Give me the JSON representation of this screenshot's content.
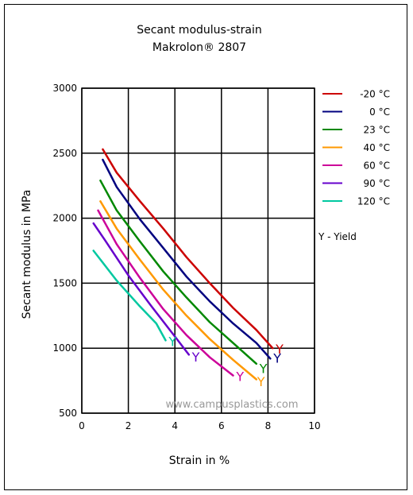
{
  "chart_data": {
    "type": "line",
    "title": "Secant modulus-strain",
    "subtitle": "Makrolon® 2807",
    "xlabel": "Strain in %",
    "ylabel": "Secant modulus in MPa",
    "xlim": [
      0,
      10
    ],
    "ylim": [
      500,
      3000
    ],
    "xticks": [
      "0",
      "2",
      "4",
      "6",
      "8",
      "10"
    ],
    "yticks": [
      "500",
      "1000",
      "1500",
      "2000",
      "2500",
      "3000"
    ],
    "grid": true,
    "legend_position": "right",
    "watermark": "www.campusplastics.com",
    "yield_note": "Y - Yield",
    "yield_marker": "Y",
    "series": [
      {
        "name": "-20 °C",
        "color": "#cc0000",
        "x": [
          0.9,
          1.5,
          2.5,
          3.5,
          4.5,
          5.5,
          6.5,
          7.5,
          8.2
        ],
        "y": [
          2530,
          2350,
          2130,
          1920,
          1700,
          1500,
          1310,
          1140,
          1000
        ],
        "yield": [
          8.5,
          1000
        ]
      },
      {
        "name": "0 °C",
        "color": "#00007f",
        "x": [
          0.9,
          1.5,
          2.5,
          3.5,
          4.5,
          5.5,
          6.5,
          7.5,
          8.1
        ],
        "y": [
          2450,
          2240,
          1990,
          1770,
          1550,
          1360,
          1190,
          1040,
          920
        ],
        "yield": [
          8.4,
          930
        ]
      },
      {
        "name": "23 °C",
        "color": "#008800",
        "x": [
          0.8,
          1.5,
          2.5,
          3.5,
          4.5,
          5.5,
          6.5,
          7.5
        ],
        "y": [
          2290,
          2060,
          1820,
          1590,
          1390,
          1200,
          1040,
          880
        ],
        "yield": [
          7.8,
          850
        ]
      },
      {
        "name": "40 °C",
        "color": "#ff9900",
        "x": [
          0.8,
          1.5,
          2.5,
          3.5,
          4.5,
          5.5,
          6.5,
          7.5
        ],
        "y": [
          2130,
          1920,
          1680,
          1450,
          1250,
          1070,
          910,
          760
        ],
        "yield": [
          7.7,
          750
        ]
      },
      {
        "name": "60 °C",
        "color": "#cc0099",
        "x": [
          0.7,
          1.5,
          2.5,
          3.5,
          4.5,
          5.5,
          6.5
        ],
        "y": [
          2060,
          1800,
          1540,
          1300,
          1100,
          930,
          790
        ],
        "yield": [
          6.8,
          790
        ]
      },
      {
        "name": "90 °C",
        "color": "#6600cc",
        "x": [
          0.5,
          1.0,
          2.0,
          3.0,
          4.0,
          4.6
        ],
        "y": [
          1960,
          1830,
          1560,
          1320,
          1090,
          950
        ],
        "yield": [
          4.9,
          940
        ]
      },
      {
        "name": "120 °C",
        "color": "#00c8a0",
        "x": [
          0.5,
          1.5,
          2.5,
          3.2,
          3.6
        ],
        "y": [
          1750,
          1520,
          1320,
          1190,
          1060
        ],
        "yield": [
          3.9,
          1060
        ]
      }
    ]
  }
}
